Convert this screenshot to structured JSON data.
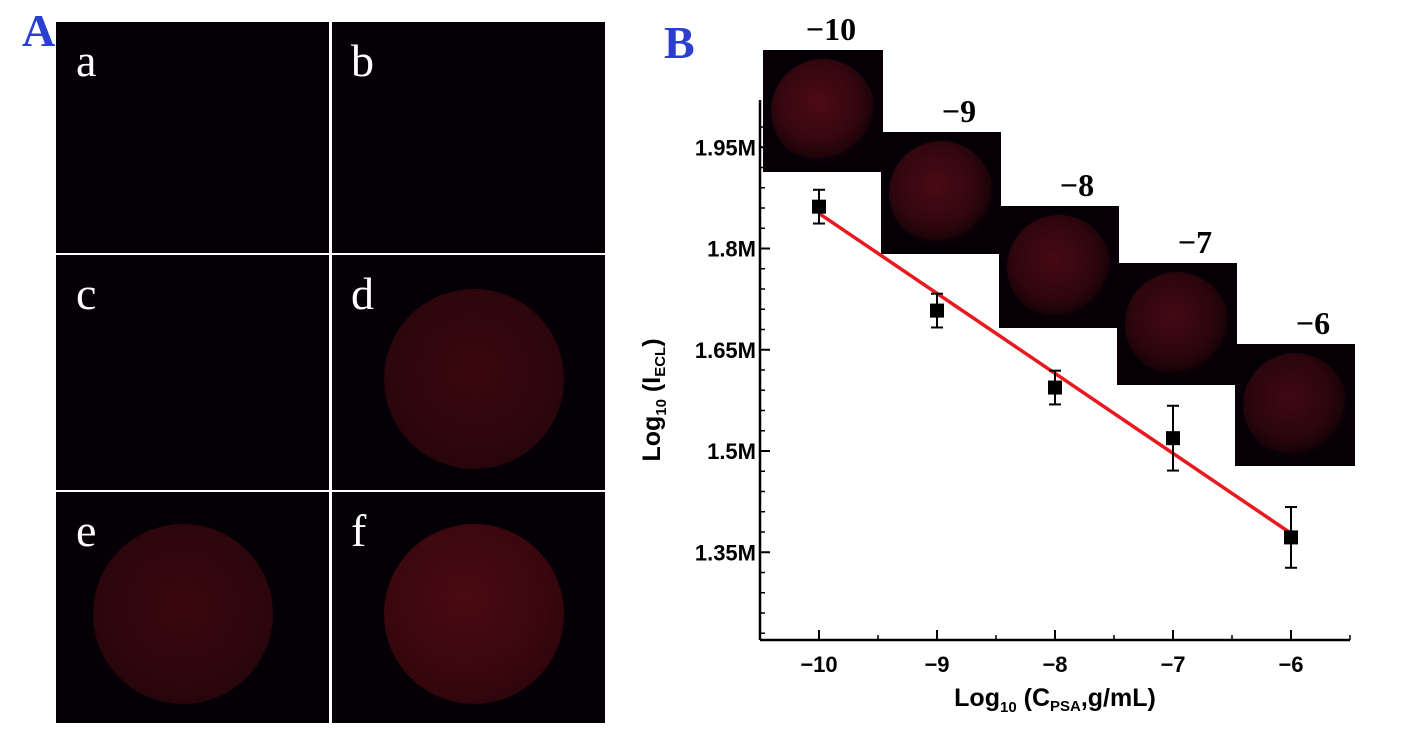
{
  "figure": {
    "panel_a": {
      "letter": "A",
      "color": "#2a3fcf",
      "cells": [
        {
          "label": "a",
          "spot": null
        },
        {
          "label": "b",
          "spot": null
        },
        {
          "label": "c",
          "spot": null
        },
        {
          "label": "d",
          "spot": "medium"
        },
        {
          "label": "e",
          "spot": "medium"
        },
        {
          "label": "f",
          "spot": "bright"
        }
      ]
    },
    "panel_b": {
      "letter": "B",
      "color": "#2a3fcf"
    }
  },
  "chart_data": {
    "type": "scatter",
    "xlabel_main": "Log",
    "xlabel_sub": "10",
    "xlabel_rest_open": " (C",
    "xlabel_subscript": "PSA",
    "xlabel_rest_close": ",g/mL)",
    "ylabel_main": "Log",
    "ylabel_sub": "10",
    "ylabel_rest_open": " (I",
    "ylabel_subscript": "ECL",
    "ylabel_rest_close": ")",
    "xlim": [
      -10.5,
      -5.5
    ],
    "ylim": [
      1.22,
      2.02
    ],
    "xticks": [
      -10,
      -9,
      -8,
      -7,
      -6
    ],
    "xtick_labels": [
      "−10",
      "−9",
      "−8",
      "−7",
      "−6"
    ],
    "yticks": [
      1.35,
      1.5,
      1.65,
      1.8,
      1.95
    ],
    "ytick_labels": [
      "1.35M",
      "1.5M",
      "1.65M",
      "1.8M",
      "1.95M"
    ],
    "series": [
      {
        "marker": "square",
        "color": "#000000",
        "points": [
          {
            "x": -10,
            "y": 1.862,
            "err": 0.025
          },
          {
            "x": -9,
            "y": 1.708,
            "err": 0.025
          },
          {
            "x": -8,
            "y": 1.594,
            "err": 0.025
          },
          {
            "x": -7,
            "y": 1.519,
            "err": 0.048
          },
          {
            "x": -6,
            "y": 1.372,
            "err": 0.045
          }
        ]
      }
    ],
    "fit_line": {
      "color": "#e8191f",
      "x": [
        -10,
        -6
      ],
      "y": [
        1.852,
        1.378
      ]
    },
    "insets": [
      {
        "x": -10,
        "label": "−10",
        "level": 0.3
      },
      {
        "x": -9,
        "label": "−9",
        "level": 0.26
      },
      {
        "x": -8,
        "label": "−8",
        "level": 0.22
      },
      {
        "x": -7,
        "label": "−7",
        "level": 0.18
      },
      {
        "x": -6,
        "label": "−6",
        "level": 0.14
      }
    ]
  }
}
